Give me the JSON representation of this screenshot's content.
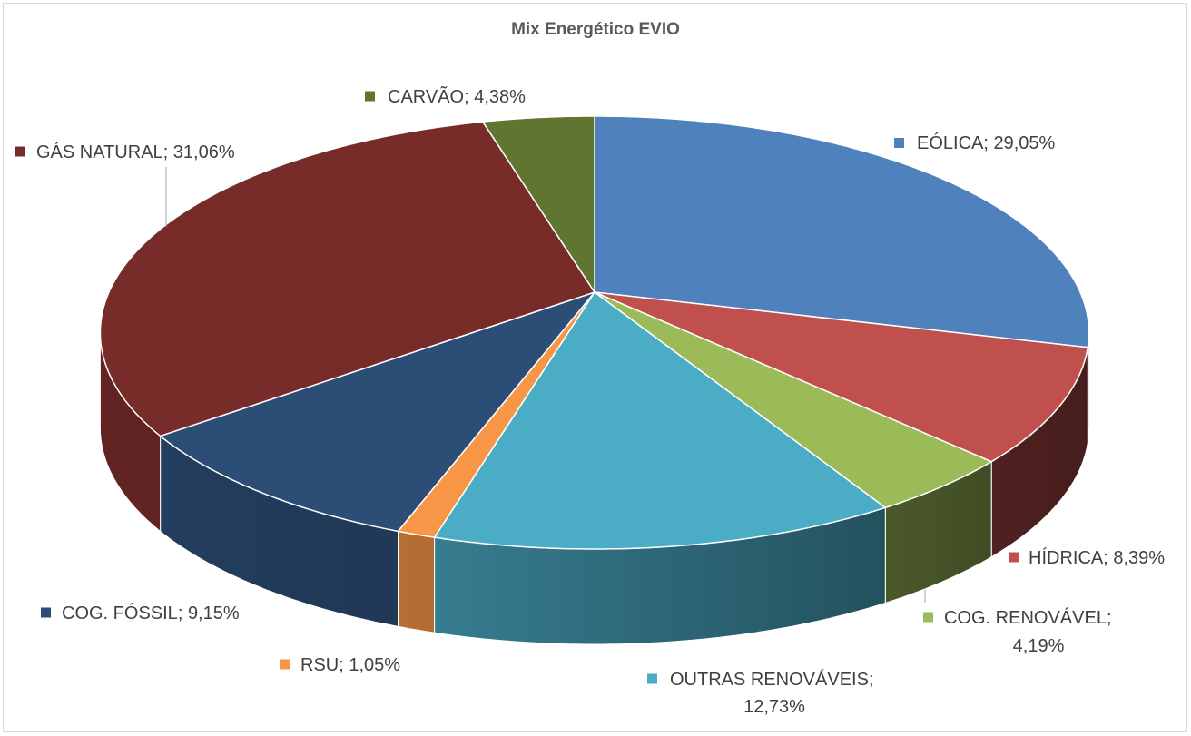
{
  "chart_data": {
    "type": "pie",
    "three_d": true,
    "title": "Mix Energético EVIO",
    "label_separator": "; ",
    "slices": [
      {
        "label": "EÓLICA",
        "value": 29.05,
        "value_label": "29,05%",
        "color": "#4F81BD"
      },
      {
        "label": "HÍDRICA",
        "value": 8.39,
        "value_label": "8,39%",
        "color": "#C0504D"
      },
      {
        "label": "COG. RENOVÁVEL",
        "value": 4.19,
        "value_label": "4,19%",
        "color": "#9BBB59"
      },
      {
        "label": "OUTRAS RENOVÁVEIS",
        "value": 12.73,
        "value_label": "12,73%",
        "color": "#4BACC6"
      },
      {
        "label": "RSU",
        "value": 1.05,
        "value_label": "1,05%",
        "color": "#F79646"
      },
      {
        "label": "COG. FÓSSIL",
        "value": 9.15,
        "value_label": "9,15%",
        "color": "#2C4D75"
      },
      {
        "label": "GÁS NATURAL",
        "value": 31.06,
        "value_label": "31,06%",
        "color": "#772C2A"
      },
      {
        "label": "CARVÃO",
        "value": 4.38,
        "value_label": "4,38%",
        "color": "#5F7530"
      }
    ]
  }
}
